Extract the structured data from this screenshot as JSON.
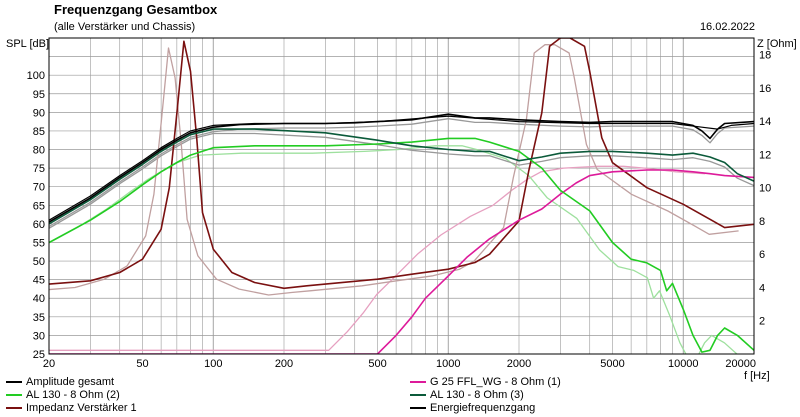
{
  "header": {
    "title": "Frequenzgang Gesamtbox",
    "subtitle": "(alle Verstärker und Chassis)",
    "date": "16.02.2022"
  },
  "chart_data": {
    "type": "line",
    "title": "Frequenzgang Gesamtbox",
    "subtitle": "(alle Verstärker und Chassis)",
    "xlabel": "f [Hz]",
    "ylabel": "SPL [dB]",
    "y2label": "Z [Ohm]",
    "xscale": "log",
    "xlim": [
      20,
      20000
    ],
    "ylim": [
      25,
      110
    ],
    "y2lim": [
      0,
      19
    ],
    "x_ticks": [
      20,
      50,
      100,
      200,
      500,
      1000,
      2000,
      5000,
      10000,
      20000
    ],
    "y_ticks": [
      25,
      30,
      35,
      40,
      45,
      50,
      55,
      60,
      65,
      70,
      75,
      80,
      85,
      90,
      95,
      100
    ],
    "y2_ticks": [
      2,
      4,
      6,
      8,
      10,
      12,
      14,
      16,
      18
    ],
    "grid": true,
    "legend_position": "bottom",
    "series": [
      {
        "name": "Amplitude gesamt",
        "color": "#000000",
        "axis": "left",
        "points": [
          [
            20,
            60.5
          ],
          [
            30,
            67
          ],
          [
            40,
            72.5
          ],
          [
            50,
            76.5
          ],
          [
            60,
            80
          ],
          [
            70,
            82.5
          ],
          [
            80,
            84.5
          ],
          [
            100,
            86
          ],
          [
            130,
            86.7
          ],
          [
            200,
            87
          ],
          [
            300,
            87
          ],
          [
            400,
            87.2
          ],
          [
            500,
            87.5
          ],
          [
            700,
            88
          ],
          [
            1000,
            89.5
          ],
          [
            1300,
            88.5
          ],
          [
            1500,
            88.5
          ],
          [
            2000,
            88
          ],
          [
            3000,
            87.5
          ],
          [
            4000,
            87.3
          ],
          [
            5000,
            87.5
          ],
          [
            7000,
            87.5
          ],
          [
            9000,
            87.5
          ],
          [
            11000,
            86.5
          ],
          [
            12000,
            85
          ],
          [
            13000,
            83
          ],
          [
            14000,
            85.5
          ],
          [
            15000,
            87
          ],
          [
            20000,
            87.5
          ]
        ]
      },
      {
        "name": "G 25 FFL_WG - 8 Ohm (1)",
        "color": "#dd1a9a",
        "axis": "left",
        "points": [
          [
            20,
            25
          ],
          [
            500,
            25
          ],
          [
            600,
            30
          ],
          [
            700,
            35
          ],
          [
            800,
            40
          ],
          [
            1000,
            46
          ],
          [
            1200,
            51
          ],
          [
            1500,
            56
          ],
          [
            2000,
            61
          ],
          [
            2500,
            64
          ],
          [
            3000,
            68
          ],
          [
            3500,
            71
          ],
          [
            4000,
            73
          ],
          [
            5000,
            74
          ],
          [
            7000,
            74.5
          ],
          [
            9000,
            74.5
          ],
          [
            11000,
            74
          ],
          [
            13000,
            73.5
          ],
          [
            15000,
            73
          ],
          [
            20000,
            72.5
          ]
        ]
      },
      {
        "name": "AL 130 - 8 Ohm (2)",
        "color": "#22cc22",
        "axis": "left",
        "points": [
          [
            20,
            55
          ],
          [
            30,
            61
          ],
          [
            40,
            66
          ],
          [
            50,
            70.5
          ],
          [
            60,
            74
          ],
          [
            70,
            76.5
          ],
          [
            80,
            78.5
          ],
          [
            100,
            80.5
          ],
          [
            150,
            81
          ],
          [
            300,
            81
          ],
          [
            500,
            81.5
          ],
          [
            700,
            82
          ],
          [
            1000,
            83
          ],
          [
            1300,
            83
          ],
          [
            1500,
            82
          ],
          [
            2000,
            79.5
          ],
          [
            2500,
            75
          ],
          [
            3000,
            69
          ],
          [
            4000,
            63.5
          ],
          [
            5000,
            55
          ],
          [
            6000,
            50.5
          ],
          [
            7000,
            49.5
          ],
          [
            8000,
            47.5
          ],
          [
            8500,
            42
          ],
          [
            9000,
            44
          ],
          [
            10000,
            37
          ],
          [
            11000,
            30
          ],
          [
            12000,
            25.5
          ],
          [
            13000,
            26
          ],
          [
            14000,
            30
          ],
          [
            15000,
            32
          ],
          [
            17000,
            30
          ],
          [
            20000,
            26
          ]
        ]
      },
      {
        "name": "AL 130 - 8 Ohm (3)",
        "color": "#0b5a3a",
        "axis": "left",
        "points": [
          [
            20,
            60
          ],
          [
            30,
            66.5
          ],
          [
            40,
            72
          ],
          [
            50,
            76
          ],
          [
            60,
            79.5
          ],
          [
            70,
            82
          ],
          [
            80,
            84
          ],
          [
            100,
            85.5
          ],
          [
            150,
            85.5
          ],
          [
            300,
            84.5
          ],
          [
            500,
            82.5
          ],
          [
            700,
            81
          ],
          [
            1000,
            80
          ],
          [
            1300,
            79.5
          ],
          [
            1500,
            79.5
          ],
          [
            2000,
            77
          ],
          [
            2500,
            78
          ],
          [
            3000,
            79
          ],
          [
            4000,
            79.5
          ],
          [
            5000,
            79.5
          ],
          [
            7000,
            79
          ],
          [
            9000,
            78.5
          ],
          [
            11000,
            79
          ],
          [
            12000,
            78.5
          ],
          [
            13000,
            78
          ],
          [
            15000,
            76.5
          ],
          [
            17000,
            73.5
          ],
          [
            20000,
            71.5
          ]
        ]
      },
      {
        "name": "Impedanz Verstärker 1",
        "color": "#7a1010",
        "axis": "right",
        "points": [
          [
            20,
            4.2
          ],
          [
            30,
            4.4
          ],
          [
            40,
            4.9
          ],
          [
            50,
            5.7
          ],
          [
            60,
            7.5
          ],
          [
            65,
            10
          ],
          [
            70,
            14.5
          ],
          [
            75,
            18.8
          ],
          [
            80,
            17
          ],
          [
            85,
            13
          ],
          [
            90,
            8.5
          ],
          [
            100,
            6.3
          ],
          [
            120,
            4.9
          ],
          [
            150,
            4.3
          ],
          [
            200,
            3.95
          ],
          [
            250,
            4.1
          ],
          [
            300,
            4.2
          ],
          [
            500,
            4.5
          ],
          [
            700,
            4.8
          ],
          [
            1000,
            5.1
          ],
          [
            1300,
            5.5
          ],
          [
            1500,
            6
          ],
          [
            2000,
            8
          ],
          [
            2200,
            11
          ],
          [
            2500,
            14.5
          ],
          [
            2700,
            18.5
          ],
          [
            3000,
            19
          ],
          [
            3300,
            19
          ],
          [
            3800,
            18.5
          ],
          [
            4000,
            17
          ],
          [
            4500,
            13
          ],
          [
            5000,
            11.5
          ],
          [
            7000,
            10
          ],
          [
            10000,
            9
          ],
          [
            13000,
            8.1
          ],
          [
            15000,
            7.6
          ],
          [
            20000,
            7.8
          ]
        ]
      },
      {
        "name": "Energiefrequenzgang",
        "color": "#000000",
        "axis": "left",
        "points": [
          [
            20,
            61
          ],
          [
            30,
            67.5
          ],
          [
            40,
            73
          ],
          [
            50,
            77
          ],
          [
            60,
            80.5
          ],
          [
            70,
            83
          ],
          [
            80,
            85
          ],
          [
            100,
            86.5
          ],
          [
            150,
            87
          ],
          [
            300,
            87
          ],
          [
            500,
            87.5
          ],
          [
            1000,
            89
          ],
          [
            2000,
            87.5
          ],
          [
            4000,
            87
          ],
          [
            9000,
            87
          ],
          [
            12000,
            86
          ],
          [
            14000,
            85.5
          ],
          [
            16000,
            86.5
          ],
          [
            20000,
            87
          ]
        ]
      }
    ]
  },
  "legend": {
    "items": [
      {
        "label": "Amplitude gesamt",
        "color": "#000000"
      },
      {
        "label": "AL 130 - 8 Ohm (2)",
        "color": "#22cc22"
      },
      {
        "label": "Impedanz Verstärker 1",
        "color": "#7a1010"
      },
      {
        "label": "G 25 FFL_WG - 8 Ohm (1)",
        "color": "#dd1a9a"
      },
      {
        "label": "AL 130 - 8 Ohm (3)",
        "color": "#0b5a3a"
      },
      {
        "label": "Energiefrequenzgang",
        "color": "#000000"
      }
    ]
  },
  "colors": {
    "grid": "#9a9a9a",
    "axis": "#000000",
    "faded_gray": "#999999",
    "faded_green": "#9ee09e",
    "faded_pink": "#e6a0c0",
    "faded_maroon": "#c0a0a0"
  }
}
